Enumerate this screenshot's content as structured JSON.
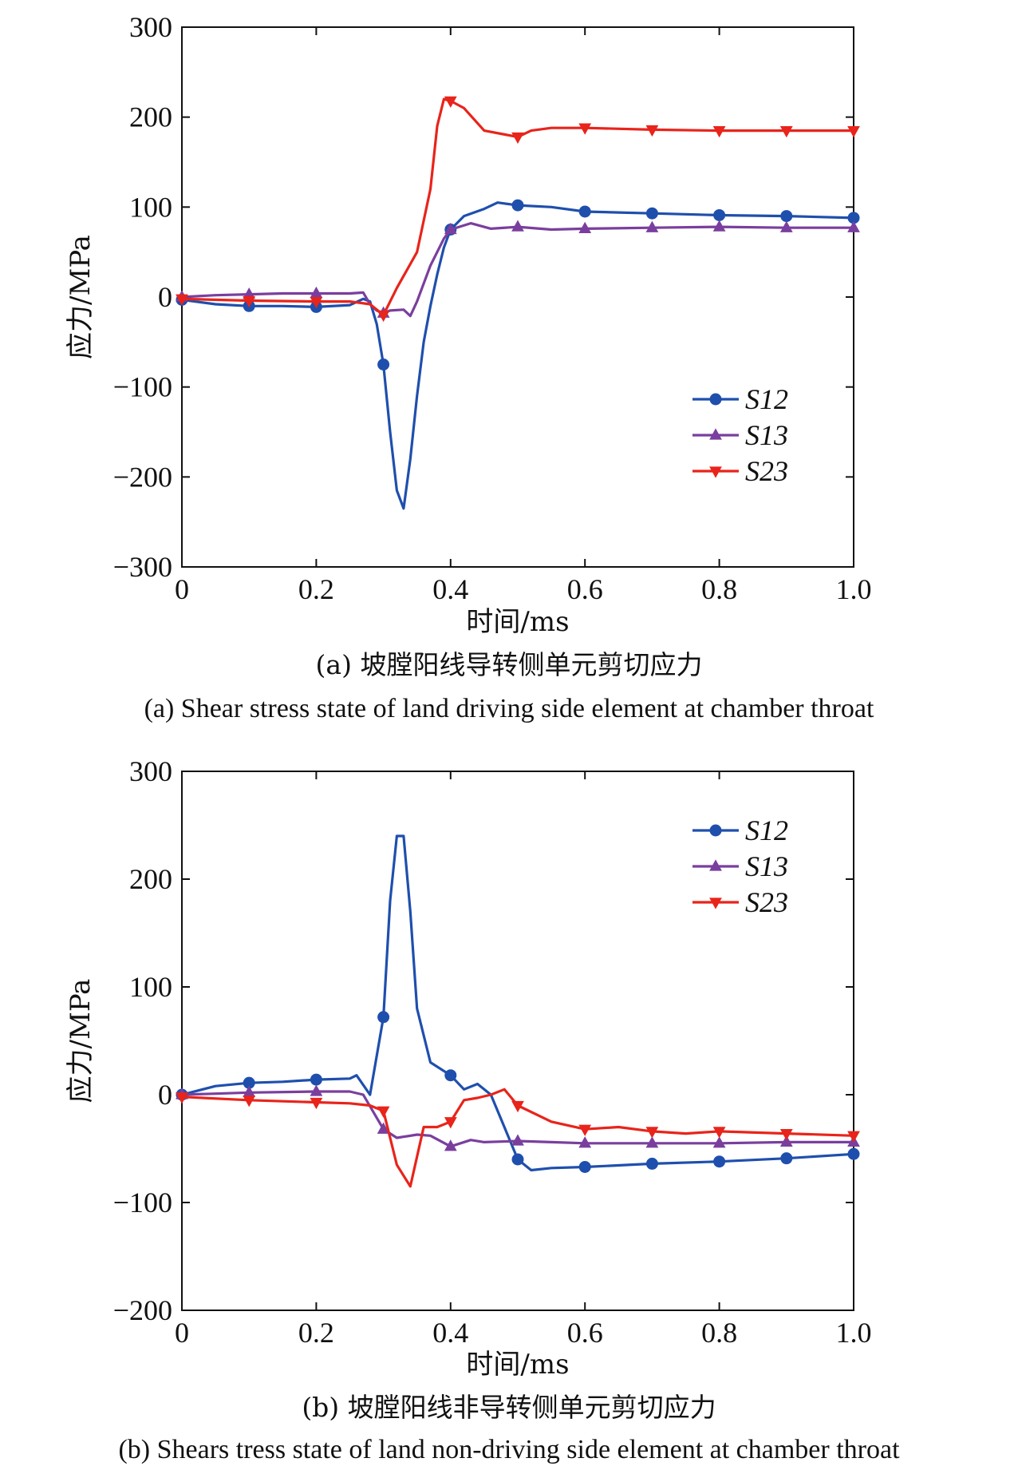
{
  "chart_data": [
    {
      "type": "line",
      "xlabel": "时间/ms",
      "ylabel": "应力/MPa",
      "xlim": [
        0,
        1.0
      ],
      "ylim": [
        -300,
        300
      ],
      "xticks": [
        "0",
        "0.2",
        "0.4",
        "0.6",
        "0.8",
        "1.0"
      ],
      "yticks": [
        "300",
        "200",
        "100",
        "0",
        "−100",
        "−200",
        "−300"
      ],
      "legend_position": "lower-right",
      "caption_cn": "(a) 坡膛阳线导转侧单元剪切应力",
      "caption_en": "(a) Shear stress state of land driving side element at chamber throat",
      "series": [
        {
          "name": "S12",
          "color": "#1f4fad",
          "marker": "circle",
          "x": [
            0,
            0.05,
            0.1,
            0.15,
            0.2,
            0.25,
            0.27,
            0.28,
            0.29,
            0.3,
            0.31,
            0.32,
            0.33,
            0.34,
            0.35,
            0.36,
            0.37,
            0.38,
            0.39,
            0.4,
            0.42,
            0.45,
            0.47,
            0.5,
            0.55,
            0.6,
            0.65,
            0.7,
            0.8,
            0.9,
            1.0
          ],
          "y": [
            -3,
            -8,
            -10,
            -10,
            -11,
            -9,
            -2,
            -5,
            -30,
            -75,
            -150,
            -215,
            -235,
            -180,
            -110,
            -50,
            -10,
            25,
            55,
            75,
            90,
            98,
            105,
            102,
            100,
            95,
            94,
            93,
            91,
            90,
            88
          ],
          "marker_x": [
            0,
            0.1,
            0.2,
            0.3,
            0.4,
            0.5,
            0.6,
            0.7,
            0.8,
            0.9,
            1.0
          ],
          "marker_y": [
            -3,
            -10,
            -11,
            -75,
            75,
            102,
            95,
            93,
            91,
            90,
            88
          ]
        },
        {
          "name": "S13",
          "color": "#7a3f9e",
          "marker": "triangle-up",
          "x": [
            0,
            0.05,
            0.1,
            0.15,
            0.2,
            0.25,
            0.27,
            0.28,
            0.29,
            0.3,
            0.31,
            0.33,
            0.34,
            0.35,
            0.37,
            0.39,
            0.4,
            0.43,
            0.46,
            0.5,
            0.55,
            0.6,
            0.7,
            0.8,
            0.9,
            1.0
          ],
          "y": [
            0,
            2,
            3,
            4,
            4,
            4,
            5,
            -8,
            -15,
            -18,
            -15,
            -14,
            -21,
            -5,
            35,
            65,
            75,
            82,
            76,
            78,
            75,
            76,
            77,
            78,
            77,
            77
          ],
          "marker_x": [
            0,
            0.1,
            0.2,
            0.3,
            0.4,
            0.5,
            0.6,
            0.7,
            0.8,
            0.9,
            1.0
          ],
          "marker_y": [
            0,
            3,
            4,
            -18,
            75,
            78,
            76,
            77,
            78,
            77,
            77
          ]
        },
        {
          "name": "S23",
          "color": "#e8241b",
          "marker": "triangle-down",
          "x": [
            0,
            0.1,
            0.2,
            0.25,
            0.28,
            0.3,
            0.32,
            0.35,
            0.37,
            0.38,
            0.39,
            0.4,
            0.42,
            0.45,
            0.5,
            0.52,
            0.55,
            0.6,
            0.7,
            0.8,
            0.9,
            1.0
          ],
          "y": [
            -2,
            -4,
            -5,
            -5,
            -8,
            -20,
            10,
            50,
            120,
            190,
            220,
            218,
            210,
            185,
            178,
            185,
            188,
            188,
            186,
            185,
            185,
            185
          ],
          "marker_x": [
            0,
            0.1,
            0.2,
            0.3,
            0.4,
            0.5,
            0.6,
            0.7,
            0.8,
            0.9,
            1.0
          ],
          "marker_y": [
            -2,
            -4,
            -5,
            -20,
            218,
            178,
            188,
            186,
            185,
            185,
            185
          ]
        }
      ]
    },
    {
      "type": "line",
      "xlabel": "时间/ms",
      "ylabel": "应力/MPa",
      "xlim": [
        0,
        1.0
      ],
      "ylim": [
        -200,
        300
      ],
      "xticks": [
        "0",
        "0.2",
        "0.4",
        "0.6",
        "0.8",
        "1.0"
      ],
      "yticks": [
        "300",
        "200",
        "100",
        "0",
        "−100",
        "−200"
      ],
      "legend_position": "top-right",
      "caption_cn": "(b) 坡膛阳线非导转侧单元剪切应力",
      "caption_en": "(b) Shears tress state of land non-driving side element at chamber throat",
      "series": [
        {
          "name": "S12",
          "color": "#1f4fad",
          "marker": "circle",
          "x": [
            0,
            0.05,
            0.1,
            0.15,
            0.2,
            0.25,
            0.26,
            0.28,
            0.3,
            0.31,
            0.32,
            0.33,
            0.34,
            0.35,
            0.37,
            0.4,
            0.42,
            0.44,
            0.46,
            0.48,
            0.5,
            0.52,
            0.55,
            0.6,
            0.7,
            0.8,
            0.9,
            1.0
          ],
          "y": [
            0,
            8,
            11,
            12,
            14,
            15,
            18,
            0,
            72,
            180,
            240,
            240,
            170,
            80,
            30,
            18,
            5,
            10,
            0,
            -30,
            -60,
            -70,
            -68,
            -67,
            -64,
            -62,
            -59,
            -55
          ],
          "marker_x": [
            0,
            0.1,
            0.2,
            0.3,
            0.4,
            0.5,
            0.6,
            0.7,
            0.8,
            0.9,
            1.0
          ],
          "marker_y": [
            0,
            11,
            14,
            72,
            18,
            -60,
            -67,
            -64,
            -62,
            -59,
            -55
          ]
        },
        {
          "name": "S13",
          "color": "#7a3f9e",
          "marker": "triangle-up",
          "x": [
            0,
            0.1,
            0.2,
            0.25,
            0.27,
            0.3,
            0.32,
            0.35,
            0.37,
            0.4,
            0.43,
            0.45,
            0.5,
            0.55,
            0.6,
            0.7,
            0.8,
            0.9,
            1.0
          ],
          "y": [
            0,
            2,
            3,
            3,
            0,
            -32,
            -40,
            -37,
            -38,
            -48,
            -42,
            -44,
            -43,
            -44,
            -45,
            -45,
            -45,
            -44,
            -44
          ],
          "marker_x": [
            0,
            0.1,
            0.2,
            0.3,
            0.4,
            0.5,
            0.6,
            0.7,
            0.8,
            0.9,
            1.0
          ],
          "marker_y": [
            0,
            2,
            3,
            -32,
            -48,
            -43,
            -45,
            -45,
            -45,
            -44,
            -44
          ]
        },
        {
          "name": "S23",
          "color": "#e8241b",
          "marker": "triangle-down",
          "x": [
            0,
            0.1,
            0.2,
            0.25,
            0.28,
            0.3,
            0.32,
            0.34,
            0.36,
            0.38,
            0.4,
            0.42,
            0.44,
            0.46,
            0.48,
            0.5,
            0.55,
            0.6,
            0.65,
            0.7,
            0.75,
            0.8,
            0.9,
            1.0
          ],
          "y": [
            -2,
            -5,
            -7,
            -8,
            -10,
            -15,
            -65,
            -85,
            -30,
            -30,
            -25,
            -5,
            -3,
            0,
            5,
            -10,
            -25,
            -32,
            -30,
            -34,
            -36,
            -34,
            -36,
            -38
          ],
          "marker_x": [
            0,
            0.1,
            0.2,
            0.3,
            0.4,
            0.5,
            0.6,
            0.7,
            0.8,
            0.9,
            1.0
          ],
          "marker_y": [
            -2,
            -5,
            -7,
            -15,
            -25,
            -10,
            -32,
            -34,
            -34,
            -36,
            -38
          ]
        }
      ]
    }
  ]
}
